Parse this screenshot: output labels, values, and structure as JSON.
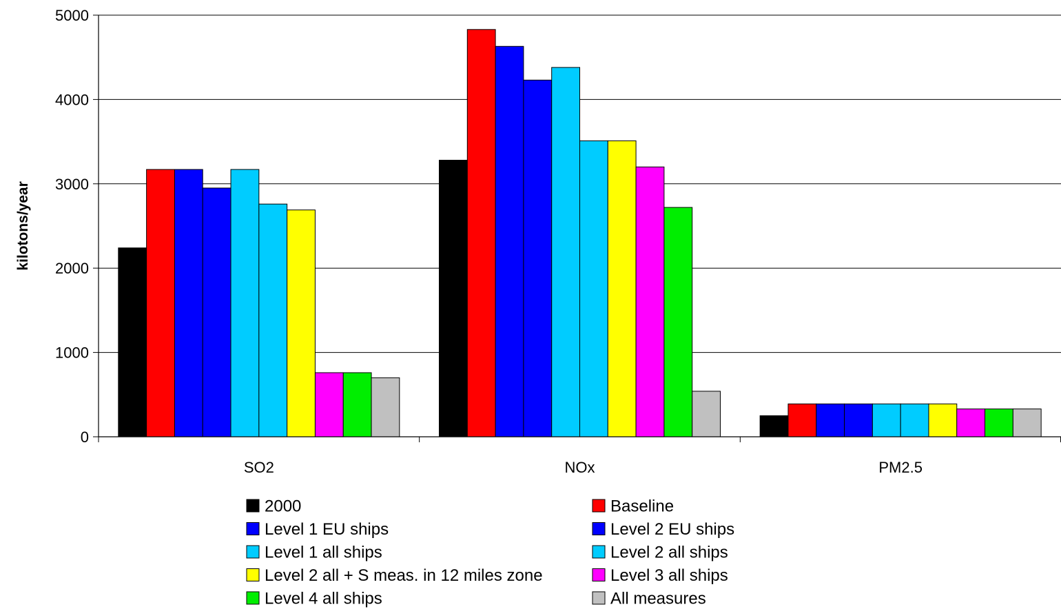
{
  "chart_data": {
    "type": "bar",
    "title": "",
    "xlabel": "",
    "ylabel": "kilotons/year",
    "ylim": [
      0,
      5000
    ],
    "yticks": [
      "0",
      "1000",
      "2000",
      "3000",
      "4000",
      "5000"
    ],
    "grid": true,
    "legend_position": "bottom",
    "categories": [
      "SO2",
      "NOx",
      "PM2.5"
    ],
    "series": [
      {
        "name": "2000",
        "color": "#000000",
        "values": [
          2240,
          3280,
          250
        ]
      },
      {
        "name": "Baseline",
        "color": "#ff0000",
        "values": [
          3170,
          4830,
          390
        ]
      },
      {
        "name": "Level 1 EU ships",
        "color": "#0000ff",
        "values": [
          3170,
          4630,
          390
        ]
      },
      {
        "name": "Level 2 EU ships",
        "color": "#0000ff",
        "values": [
          2950,
          4230,
          390
        ]
      },
      {
        "name": "Level 1 all ships",
        "color": "#00ccff",
        "values": [
          3170,
          4380,
          390
        ]
      },
      {
        "name": "Level 2 all ships",
        "color": "#00ccff",
        "values": [
          2760,
          3510,
          390
        ]
      },
      {
        "name": "Level 2 all + S meas. in 12 miles zone",
        "color": "#ffff00",
        "values": [
          2690,
          3510,
          390
        ]
      },
      {
        "name": "Level 3 all ships",
        "color": "#ff00ff",
        "values": [
          760,
          3200,
          330
        ]
      },
      {
        "name": "Level 4 all ships",
        "color": "#00ee00",
        "values": [
          760,
          2720,
          330
        ]
      },
      {
        "name": "All measures",
        "color": "#c0c0c0",
        "values": [
          700,
          540,
          330
        ]
      }
    ]
  }
}
